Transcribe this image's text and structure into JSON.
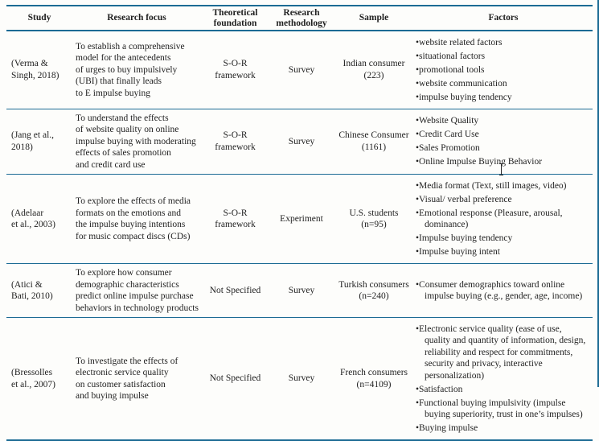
{
  "colors": {
    "rule": "#1c6b94",
    "text": "#1f1f1f",
    "background": "#fdfdfb"
  },
  "table": {
    "headers": [
      "Study",
      "Research focus",
      "Theoretical\nfoundation",
      "Research\nmethodology",
      "Sample",
      "Factors"
    ],
    "rows": [
      {
        "study": "(Verma &\nSingh, 2018)",
        "focus": "To establish a comprehensive\nmodel for the antecedents\nof urges to buy impulsively\n(UBI) that finally leads\nto E impulse buying",
        "foundation": "S-O-R framework",
        "methodology": "Survey",
        "sample": "Indian consumer\n(223)",
        "factors": [
          "website related factors",
          "situational factors",
          "promotional tools",
          "website communication",
          "impulse buying tendency"
        ]
      },
      {
        "study": "(Jang et al.,\n2018)",
        "focus": "To understand the effects\nof website quality on online\nimpulse buying with moderating\neffects of sales promotion\nand credit card use",
        "foundation": "S-O-R framework",
        "methodology": "Survey",
        "sample": "Chinese Consumer\n(1161)",
        "factors": [
          "Website Quality",
          "Credit Card Use",
          "Sales Promotion",
          "Online Impulse Buying Behavior"
        ]
      },
      {
        "study": "(Adelaar\net al., 2003)",
        "focus": "To explore the effects of media\nformats on the emotions and\nthe impulse buying intentions\nfor music compact discs (CDs)",
        "foundation": "S-O-R framework",
        "methodology": "Experiment",
        "sample": "U.S. students\n(n=95)",
        "factors": [
          "Media format (Text, still images, video)",
          "Visual/ verbal preference",
          "Emotional response (Pleasure, arousal, dominance)",
          "Impulse buying tendency",
          "Impulse buying intent"
        ]
      },
      {
        "study": "(Atici &\nBati, 2010)",
        "focus": "To explore how consumer\ndemographic characteristics\npredict online impulse purchase\nbehaviors in technology products",
        "foundation": "Not Specified",
        "methodology": "Survey",
        "sample": "Turkish consumers\n(n=240)",
        "factors": [
          "Consumer demographics toward online impulse buying (e.g., gender, age, income)"
        ]
      },
      {
        "study": "(Bressolles\net al., 2007)",
        "focus": "To investigate the effects of\nelectronic service quality\non customer satisfaction\nand buying impulse",
        "foundation": "Not Specified",
        "methodology": "Survey",
        "sample": "French consumers\n(n=4109)",
        "factors": [
          "Electronic service quality (ease of use, quality and quantity of information, design, reliability and respect for commitments, security and privacy, interactive personalization)",
          "Satisfaction",
          "Functional buying impulsivity (impulse buying superiority, trust in one’s impulses)",
          "Buying impulse"
        ]
      }
    ]
  }
}
